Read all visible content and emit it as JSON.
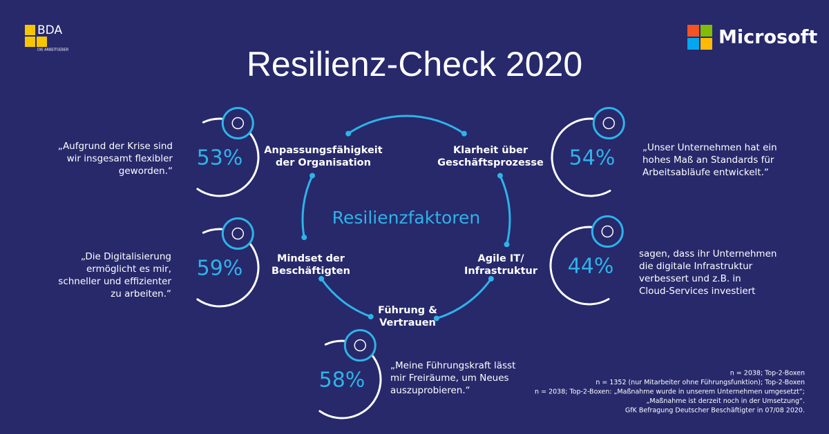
{
  "header": {
    "title": "Resilienz-Check 2020",
    "left_logo": {
      "name": "BDA",
      "tagline": "DIE ARBEITGEBER"
    },
    "right_logo": "Microsoft"
  },
  "center": {
    "title": "Resilienzfaktoren",
    "factors": [
      {
        "label": [
          "Anpassungsfähigkeit",
          "der Organisation"
        ]
      },
      {
        "label": [
          "Klarheit über",
          "Geschäftsprozesse"
        ]
      },
      {
        "label": [
          "Agile IT/",
          "Infrastruktur"
        ]
      },
      {
        "label": [
          "Führung &",
          "Vertrauen"
        ]
      },
      {
        "label": [
          "Mindset der",
          "Beschäftigten"
        ]
      }
    ]
  },
  "stats": [
    {
      "percent": "53%",
      "quote": [
        "„Aufgrund der Krise sind",
        "wir insgesamt flexibler",
        "geworden.“"
      ]
    },
    {
      "percent": "59%",
      "quote": [
        "„Die Digitalisierung",
        "ermöglicht es mir,",
        "schneller und effizienter",
        "zu arbeiten.“"
      ]
    },
    {
      "percent": "58%",
      "quote": [
        "„Meine Führungskraft lässt",
        "mir Freiräume, um Neues",
        "auszuprobieren.“"
      ]
    },
    {
      "percent": "54%",
      "quote": [
        "„Unser Unternehmen hat ein",
        "hohes Maß an Standards für",
        "Arbeitsabläufe entwickelt.“"
      ]
    },
    {
      "percent": "44%",
      "quote": [
        "sagen, dass ihr Unternehmen",
        "die digitale Infrastruktur",
        "verbessert und z.B. in",
        "Cloud-Services investiert"
      ]
    }
  ],
  "footnotes": [
    "n = 2038; Top-2-Boxen",
    "n = 1352 (nur Mitarbeiter ohne Führungsfunktion); Top-2-Boxen",
    "n = 2038; Top-2-Boxen: „Maßnahme wurde in unserem Unternehmen umgesetzt“;",
    "„Maßnahme ist derzeit noch in der Umsetzung“.",
    "GfK Befragung Deutscher Beschäftigter in 07/08 2020."
  ]
}
